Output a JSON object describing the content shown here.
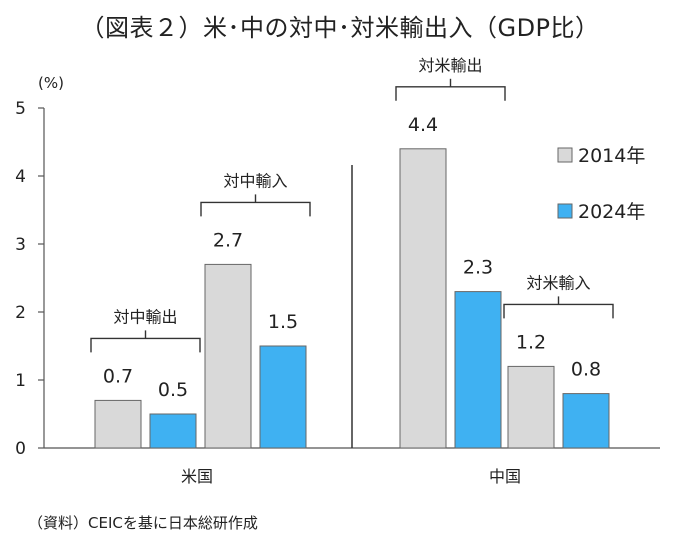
{
  "title": "（図表２）米･中の対中･対米輸出入（GDP比）",
  "source": "（資料）CEICを基に日本総研作成",
  "chart_data": {
    "type": "bar",
    "ylabel": "(%)",
    "ylim": [
      0,
      5
    ],
    "yticks": [
      "0",
      "1",
      "2",
      "3",
      "4",
      "5"
    ],
    "grid": false,
    "legend_position": "right",
    "categories": [
      "米国",
      "中国"
    ],
    "series": [
      {
        "name": "2014年",
        "color": "#d9d9d9"
      },
      {
        "name": "2024年",
        "color": "#3fb1f2"
      }
    ],
    "groups": [
      {
        "category": "米国",
        "pairs": [
          {
            "label": "対中輸出",
            "values": [
              0.7,
              0.5
            ],
            "value_labels": [
              "0.7",
              "0.5"
            ]
          },
          {
            "label": "対中輸入",
            "values": [
              2.7,
              1.5
            ],
            "value_labels": [
              "2.7",
              "1.5"
            ]
          }
        ]
      },
      {
        "category": "中国",
        "pairs": [
          {
            "label": "対米輸出",
            "values": [
              4.4,
              2.3
            ],
            "value_labels": [
              "4.4",
              "2.3"
            ]
          },
          {
            "label": "対米輸入",
            "values": [
              1.2,
              0.8
            ],
            "value_labels": [
              "1.2",
              "0.8"
            ]
          }
        ]
      }
    ]
  }
}
